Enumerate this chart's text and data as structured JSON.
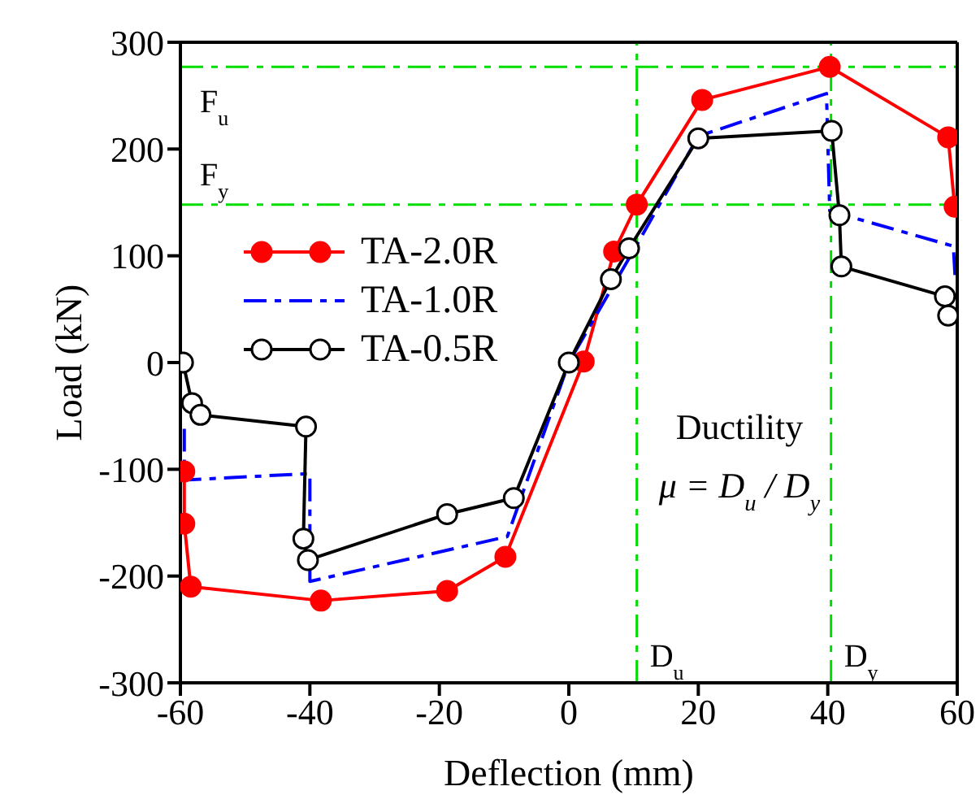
{
  "chart_data": {
    "type": "line",
    "xlabel": "Deflection (mm)",
    "ylabel": "Load (kN)",
    "xlim": [
      -60,
      60
    ],
    "xticks": [
      -60,
      -40,
      -20,
      0,
      20,
      40,
      60
    ],
    "ylim": [
      -300,
      300
    ],
    "yticks": [
      -300,
      -200,
      -100,
      0,
      100,
      200,
      300
    ],
    "grid": false,
    "legend": "left",
    "series": [
      {
        "name": "TA-2.0R",
        "color": "#ff0000",
        "marker": "circle",
        "line_style": "solid",
        "x": [
          -59.4,
          -59.4,
          -58.4,
          -38.3,
          -18.8,
          -9.8,
          2.3,
          7,
          10.5,
          20.6,
          40.3,
          58.6,
          59.6
        ],
        "values": [
          -102,
          -151,
          -210,
          -223,
          -214,
          -182,
          1,
          104,
          148,
          246,
          277,
          211,
          146
        ]
      },
      {
        "name": "TA-1.0R",
        "color": "#0000ff",
        "marker": "none",
        "line_style": "dashed",
        "x": [
          -59.4,
          -59.4,
          -40,
          -40,
          -9.5,
          0,
          10,
          20,
          39.8,
          40.3,
          59.4,
          59.7
        ],
        "values": [
          -62,
          -110,
          -104,
          -205,
          -163,
          0,
          105,
          212,
          252,
          142,
          109,
          77
        ]
      },
      {
        "name": "TA-0.5R",
        "color": "#000000",
        "marker": "circle",
        "line_style": "solid",
        "x": [
          -59.6,
          -58.2,
          -56.9,
          -40.6,
          -41,
          -40.3,
          -18.8,
          -8.5,
          0,
          6.5,
          9.3,
          20,
          40.6,
          41.8,
          42.1,
          58.1,
          58.6
        ],
        "values": [
          0,
          -38,
          -49,
          -60,
          -165,
          -185,
          -142,
          -127,
          0,
          78,
          107,
          210,
          217,
          138,
          90,
          62,
          44
        ]
      }
    ],
    "ref_lines": [
      {
        "axis": "y",
        "value": 277,
        "label": "F$_{u}$",
        "color": "#00dd00",
        "line_style": "dashed"
      },
      {
        "axis": "y",
        "value": 148,
        "label": "F$_{y}$",
        "color": "#00dd00",
        "line_style": "dashed"
      },
      {
        "axis": "x",
        "value": 10.5,
        "label": "D$_{u}$",
        "color": "#00dd00",
        "line_style": "dashed"
      },
      {
        "axis": "x",
        "value": 40.5,
        "label": "D$_{y}$",
        "color": "#00dd00",
        "line_style": "dashed"
      }
    ],
    "annotations": [
      {
        "text": "Ductility"
      },
      {
        "text": "μ = D$_{u}$ / D$_{y}$"
      }
    ]
  }
}
